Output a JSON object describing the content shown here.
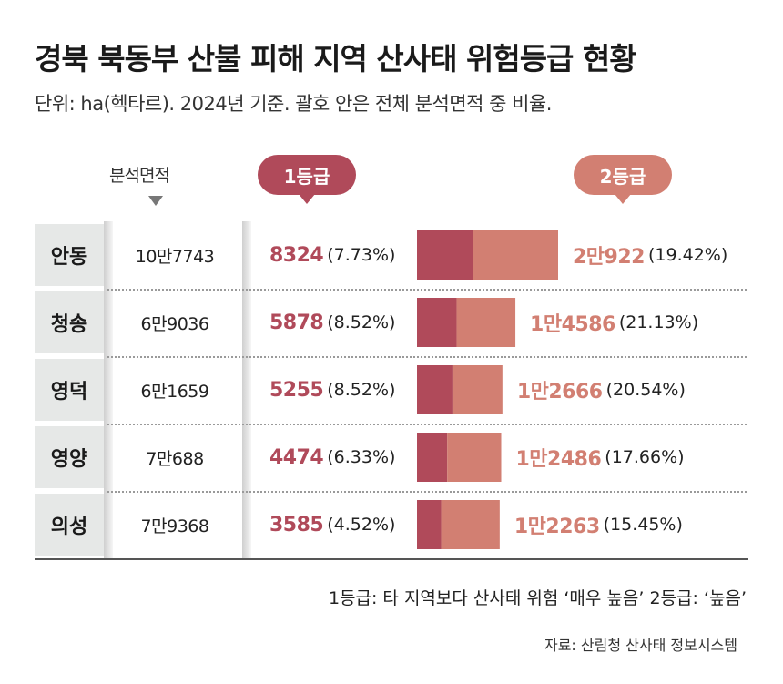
{
  "title": "경북 북동부 산불 피해 지역 산사태 위험등급 현황",
  "subtitle": "단위: ha(헥타르). 2024년 기준. 괄호 안은 전체 분석면적 중 비율.",
  "column_header": "분석면적",
  "grade1_label": "1등급",
  "grade2_label": "2등급",
  "footnote": "1등급: 타 지역보다 산사태 위험 ‘매우 높음’   2등급: ‘높음’",
  "source": "자료: 산림청 산사태 정보시스템",
  "colors": {
    "grade1": "#b04a5a",
    "grade2": "#d27f72",
    "row_label_bg": "#e6e8e7"
  },
  "rows": [
    {
      "region": "안동",
      "area": "10만7743",
      "g1": "8324",
      "g1_pct": "(7.73%)",
      "g2": "2만922",
      "g2_pct": "(19.42%)"
    },
    {
      "region": "청송",
      "area": "6만9036",
      "g1": "5878",
      "g1_pct": "(8.52%)",
      "g2": "1만4586",
      "g2_pct": "(21.13%)"
    },
    {
      "region": "영덕",
      "area": "6만1659",
      "g1": "5255",
      "g1_pct": "(8.52%)",
      "g2": "1만2666",
      "g2_pct": "(20.54%)"
    },
    {
      "region": "영양",
      "area": "7만688",
      "g1": "4474",
      "g1_pct": "(6.33%)",
      "g2": "1만2486",
      "g2_pct": "(17.66%)"
    },
    {
      "region": "의성",
      "area": "7만9368",
      "g1": "3585",
      "g1_pct": "(4.52%)",
      "g2": "1만2263",
      "g2_pct": "(15.45%)"
    }
  ],
  "chart_data": {
    "type": "bar",
    "stacked": true,
    "categories": [
      "안동",
      "청송",
      "영덕",
      "영양",
      "의성"
    ],
    "series": [
      {
        "name": "1등급",
        "values": [
          8324,
          5878,
          5255,
          4474,
          3585
        ]
      },
      {
        "name": "2등급",
        "values": [
          20922,
          14586,
          12666,
          12486,
          12263
        ]
      }
    ],
    "analysis_area": [
      107743,
      69036,
      61659,
      70688,
      79368
    ],
    "grade1_pct": [
      7.73,
      8.52,
      8.52,
      6.33,
      4.52
    ],
    "grade2_pct": [
      19.42,
      21.13,
      20.54,
      17.66,
      15.45
    ],
    "unit": "ha"
  }
}
